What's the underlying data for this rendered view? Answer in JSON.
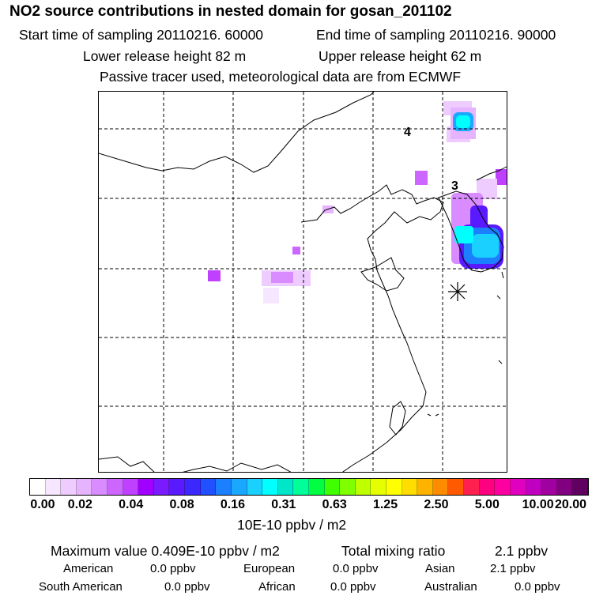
{
  "title": "NO2 source contributions in nested domain for gosan_201102",
  "header": {
    "start_time": "Start time of sampling 20110216. 60000",
    "end_time": "End time of sampling 20110216. 90000",
    "lower_height": "Lower release height   82 m",
    "upper_height": "Upper release height   62 m",
    "tracer_note": "Passive tracer used, meteorological data are from ECMWF"
  },
  "map": {
    "grid_labels": [
      "4",
      "3"
    ],
    "receptor_marker": "asterisk-receptor"
  },
  "colorbar": {
    "colors": [
      "#ffffff",
      "#f7e6ff",
      "#efccff",
      "#e6b3ff",
      "#d98cff",
      "#cc66ff",
      "#bf40ff",
      "#a000ff",
      "#7a1aff",
      "#5a1aff",
      "#3a28ff",
      "#2050ff",
      "#1a80ff",
      "#1aa8ff",
      "#1ad0ff",
      "#00ffff",
      "#00e6c8",
      "#00ff99",
      "#00ff40",
      "#40ff00",
      "#80ff00",
      "#bfff00",
      "#e6ff00",
      "#ffff00",
      "#ffdd00",
      "#ffb300",
      "#ff8c00",
      "#ff5a00",
      "#ff2050",
      "#ff0080",
      "#ff00a0",
      "#e000c0",
      "#c000c0",
      "#a000a0",
      "#800080",
      "#600060"
    ],
    "ticks": [
      "0.00",
      "0.02",
      "0.04",
      "0.08",
      "0.16",
      "0.31",
      "0.63",
      "1.25",
      "2.50",
      "5.00",
      "10.00",
      "20.00"
    ],
    "units": "10E-10 ppbv / m2"
  },
  "summary": {
    "max_value": "Maximum value  0.409E-10 ppbv / m2",
    "total_mixing": "Total mixing ratio",
    "total_value": "2.1 ppbv",
    "american_label": "American",
    "american_value": "0.0 ppbv",
    "european_label": "European",
    "european_value": "0.0 ppbv",
    "asian_label": "Asian",
    "asian_value": "2.1 ppbv",
    "south_american_label": "South American",
    "south_american_value": "0.0 ppbv",
    "african_label": "African",
    "african_value": "0.0 ppbv",
    "australian_label": "Australian",
    "australian_value": "0.0 ppbv"
  }
}
